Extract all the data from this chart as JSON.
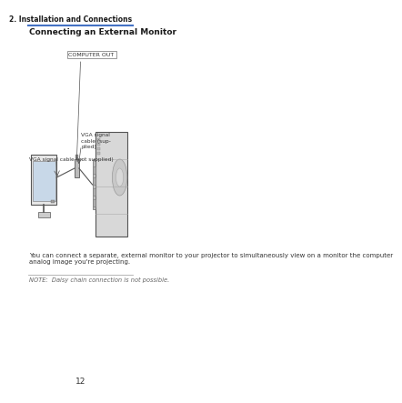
{
  "page_number": "12",
  "header_right": "2. Installation and Connections",
  "section_title": "Connecting an External Monitor",
  "body_text": "You can connect a separate, external monitor to your projector to simultaneously view on a monitor the computer\nanalog image you're projecting.",
  "note_text": "NOTE:  Daisy chain connection is not possible.",
  "header_line_color": "#4472c4",
  "note_line_color": "#aaaaaa",
  "text_color": "#333333",
  "header_text_color": "#1a1a1a",
  "bg_color": "#ffffff",
  "diagram_labels": {
    "computer_out": "COMPUTER OUT",
    "vga_not_supplied": "VGA signal cable (not supplied)",
    "vga_supplied": "VGA signal\ncable (sup-\nplied)"
  }
}
